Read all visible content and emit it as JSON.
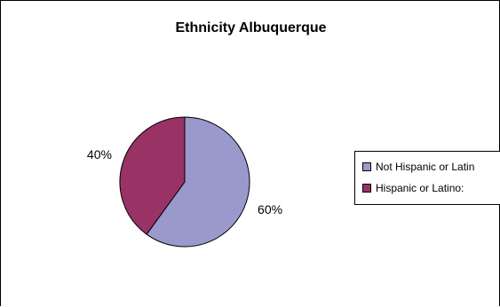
{
  "chart_data": {
    "type": "pie",
    "title": "Ethnicity Albuquerque",
    "slices": [
      {
        "label": "Not Hispanic or Latino:",
        "legend_text": "Not Hispanic or Latin",
        "value": 60,
        "display": "60%",
        "color": "#9999cc"
      },
      {
        "label": "Hispanic or Latino:",
        "legend_text": "Hispanic or Latino:",
        "value": 40,
        "display": "40%",
        "color": "#993366"
      }
    ],
    "legend_position": "right"
  }
}
